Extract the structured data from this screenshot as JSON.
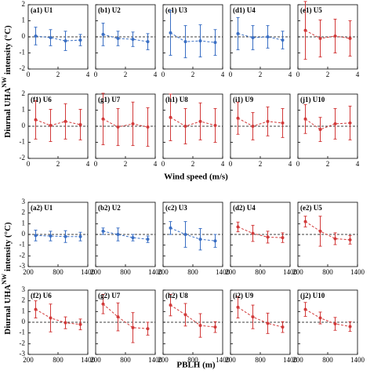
{
  "axis_labels": [
    {
      "xlabel": "Wind speed (m/s)",
      "ylabel": [
        "Diurnal UHA",
        "NW",
        "intensity (°C)"
      ]
    },
    {
      "xlabel": "PBLH (m)",
      "ylabel": [
        "Diurnal UHA",
        "NW",
        "intensity (°C)"
      ]
    }
  ],
  "chart_data": [
    {
      "type": "errorbar",
      "title": "(a1) U1",
      "x": [
        0.5,
        1.5,
        2.5,
        3.5
      ],
      "xlim": [
        0,
        4
      ],
      "xticks": [
        0,
        2,
        4
      ],
      "ylim": [
        -2,
        2
      ],
      "yticks": [
        -2,
        -1,
        0,
        1,
        2
      ],
      "hline": 0,
      "series": [
        {
          "color": "#3a6fc4",
          "values": [
            0.05,
            -0.05,
            -0.25,
            -0.2
          ],
          "errors": [
            0.55,
            0.5,
            0.6,
            0.35
          ]
        }
      ]
    },
    {
      "type": "errorbar",
      "title": "(b1) U2",
      "x": [
        0.5,
        1.5,
        2.5,
        3.5
      ],
      "xlim": [
        0,
        4
      ],
      "xticks": [
        0,
        2,
        4
      ],
      "ylim": [
        -2,
        2
      ],
      "yticks": [
        -2,
        -1,
        0,
        1,
        2
      ],
      "hline": 0,
      "series": [
        {
          "color": "#3a6fc4",
          "values": [
            0.15,
            -0.1,
            -0.15,
            -0.3
          ],
          "errors": [
            0.7,
            0.45,
            0.45,
            0.5
          ]
        }
      ]
    },
    {
      "type": "errorbar",
      "title": "(c1) U3",
      "x": [
        0.5,
        1.5,
        2.5,
        3.5
      ],
      "xlim": [
        0,
        4
      ],
      "xticks": [
        0,
        2,
        4
      ],
      "ylim": [
        -2,
        2
      ],
      "yticks": [
        -2,
        -1,
        0,
        1,
        2
      ],
      "hline": 0,
      "series": [
        {
          "color": "#3a6fc4",
          "values": [
            0.25,
            -0.3,
            -0.25,
            -0.35
          ],
          "errors": [
            1.4,
            1.0,
            1.0,
            0.8
          ]
        }
      ]
    },
    {
      "type": "errorbar",
      "title": "(d1) U4",
      "x": [
        0.5,
        1.5,
        2.5,
        3.5
      ],
      "xlim": [
        0,
        4
      ],
      "xticks": [
        0,
        2,
        4
      ],
      "ylim": [
        -2,
        2
      ],
      "yticks": [
        -2,
        -1,
        0,
        1,
        2
      ],
      "hline": 0,
      "series": [
        {
          "color": "#3a6fc4",
          "values": [
            0.2,
            -0.05,
            0.0,
            -0.2
          ],
          "errors": [
            1.0,
            0.75,
            0.7,
            0.55
          ]
        }
      ]
    },
    {
      "type": "errorbar",
      "title": "(e1) U5",
      "x": [
        0.5,
        1.5,
        2.5,
        3.5
      ],
      "xlim": [
        0,
        4
      ],
      "xticks": [
        0,
        2,
        4
      ],
      "ylim": [
        -2,
        2
      ],
      "yticks": [
        -2,
        -1,
        0,
        1,
        2
      ],
      "hline": 0,
      "series": [
        {
          "color": "#d23a3a",
          "values": [
            0.4,
            -0.1,
            0.05,
            -0.1
          ],
          "errors": [
            1.8,
            1.15,
            1.05,
            1.1
          ]
        }
      ]
    },
    {
      "type": "errorbar",
      "title": "(f1) U6",
      "x": [
        0.5,
        1.5,
        2.5,
        3.5
      ],
      "xlim": [
        0,
        4
      ],
      "xticks": [
        0,
        2,
        4
      ],
      "ylim": [
        -2,
        2
      ],
      "yticks": [
        -2,
        -1,
        0,
        1,
        2
      ],
      "hline": 0,
      "series": [
        {
          "color": "#d23a3a",
          "values": [
            0.4,
            0.05,
            0.3,
            0.1
          ],
          "errors": [
            1.2,
            1.0,
            1.1,
            0.95
          ]
        }
      ]
    },
    {
      "type": "errorbar",
      "title": "(g1) U7",
      "x": [
        0.5,
        1.5,
        2.5,
        3.5
      ],
      "xlim": [
        0,
        4
      ],
      "xticks": [
        0,
        2,
        4
      ],
      "ylim": [
        -2,
        2
      ],
      "yticks": [
        -2,
        -1,
        0,
        1,
        2
      ],
      "hline": 0,
      "series": [
        {
          "color": "#d23a3a",
          "values": [
            0.45,
            -0.05,
            0.15,
            -0.05
          ],
          "errors": [
            1.6,
            1.15,
            1.35,
            1.2
          ]
        }
      ]
    },
    {
      "type": "errorbar",
      "title": "(h1) U8",
      "x": [
        0.5,
        1.5,
        2.5,
        3.5
      ],
      "xlim": [
        0,
        4
      ],
      "xticks": [
        0,
        2,
        4
      ],
      "ylim": [
        -2,
        2
      ],
      "yticks": [
        -2,
        -1,
        0,
        1,
        2
      ],
      "hline": 0,
      "series": [
        {
          "color": "#d23a3a",
          "values": [
            0.55,
            0.0,
            0.3,
            0.05
          ],
          "errors": [
            1.45,
            1.1,
            1.15,
            1.05
          ]
        }
      ]
    },
    {
      "type": "errorbar",
      "title": "(i1) U9",
      "x": [
        0.5,
        1.5,
        2.5,
        3.5
      ],
      "xlim": [
        0,
        4
      ],
      "xticks": [
        0,
        2,
        4
      ],
      "ylim": [
        -2,
        2
      ],
      "yticks": [
        -2,
        -1,
        0,
        1,
        2
      ],
      "hline": 0,
      "series": [
        {
          "color": "#d23a3a",
          "values": [
            0.5,
            0.0,
            0.3,
            0.2
          ],
          "errors": [
            1.0,
            0.85,
            0.9,
            0.9
          ]
        }
      ]
    },
    {
      "type": "errorbar",
      "title": "(j1) U10",
      "x": [
        0.5,
        1.5,
        2.5,
        3.5
      ],
      "xlim": [
        0,
        4
      ],
      "xticks": [
        0,
        2,
        4
      ],
      "ylim": [
        -2,
        2
      ],
      "yticks": [
        -2,
        -1,
        0,
        1,
        2
      ],
      "hline": 0,
      "series": [
        {
          "color": "#d23a3a",
          "values": [
            0.45,
            -0.2,
            0.15,
            0.2
          ],
          "errors": [
            0.9,
            0.75,
            0.95,
            1.05
          ]
        }
      ]
    },
    {
      "type": "errorbar",
      "title": "(a2) U1",
      "x": [
        350,
        650,
        950,
        1250
      ],
      "xlim": [
        200,
        1400
      ],
      "xticks": [
        200,
        800,
        1400
      ],
      "ylim": [
        -3,
        3
      ],
      "yticks": [
        -3,
        -2,
        -1,
        0,
        1,
        2,
        3
      ],
      "hline": 0,
      "series": [
        {
          "color": "#3a6fc4",
          "values": [
            -0.1,
            -0.15,
            -0.2,
            -0.2
          ],
          "errors": [
            0.5,
            0.45,
            0.55,
            0.4
          ]
        }
      ]
    },
    {
      "type": "errorbar",
      "title": "(b2) U2",
      "x": [
        350,
        650,
        950,
        1250
      ],
      "xlim": [
        200,
        1400
      ],
      "xticks": [
        200,
        800,
        1400
      ],
      "ylim": [
        -3,
        3
      ],
      "yticks": [
        -3,
        -2,
        -1,
        0,
        1,
        2,
        3
      ],
      "hline": 0,
      "series": [
        {
          "color": "#3a6fc4",
          "values": [
            0.3,
            0.0,
            -0.3,
            -0.45
          ],
          "errors": [
            0.3,
            0.6,
            0.3,
            0.3
          ]
        }
      ]
    },
    {
      "type": "errorbar",
      "title": "(c2) U3",
      "x": [
        350,
        650,
        950,
        1250
      ],
      "xlim": [
        200,
        1400
      ],
      "xticks": [
        200,
        800,
        1400
      ],
      "ylim": [
        -3,
        3
      ],
      "yticks": [
        -3,
        -2,
        -1,
        0,
        1,
        2,
        3
      ],
      "hline": 0,
      "series": [
        {
          "color": "#3a6fc4",
          "values": [
            0.6,
            0.0,
            -0.45,
            -0.6
          ],
          "errors": [
            0.6,
            1.2,
            1.0,
            0.6
          ]
        }
      ]
    },
    {
      "type": "errorbar",
      "title": "(d2) U4",
      "x": [
        350,
        650,
        950,
        1250
      ],
      "xlim": [
        200,
        1400
      ],
      "xticks": [
        200,
        800,
        1400
      ],
      "ylim": [
        -3,
        3
      ],
      "yticks": [
        -3,
        -2,
        -1,
        0,
        1,
        2,
        3
      ],
      "hline": 0,
      "series": [
        {
          "color": "#d23a3a",
          "values": [
            0.7,
            0.1,
            -0.25,
            -0.3
          ],
          "errors": [
            0.45,
            0.75,
            0.55,
            0.45
          ]
        }
      ]
    },
    {
      "type": "errorbar",
      "title": "(e2) U5",
      "x": [
        350,
        650,
        950,
        1250
      ],
      "xlim": [
        200,
        1400
      ],
      "xticks": [
        200,
        800,
        1400
      ],
      "ylim": [
        -3,
        3
      ],
      "yticks": [
        -3,
        -2,
        -1,
        0,
        1,
        2,
        3
      ],
      "hline": 0,
      "series": [
        {
          "color": "#d23a3a",
          "values": [
            1.2,
            0.3,
            -0.4,
            -0.5
          ],
          "errors": [
            0.5,
            1.4,
            0.55,
            0.4
          ]
        }
      ]
    },
    {
      "type": "errorbar",
      "title": "(f2) U6",
      "x": [
        350,
        650,
        950,
        1250
      ],
      "xlim": [
        200,
        1400
      ],
      "xticks": [
        200,
        800,
        1400
      ],
      "ylim": [
        -3,
        3
      ],
      "yticks": [
        -3,
        -2,
        -1,
        0,
        1,
        2,
        3
      ],
      "hline": 0,
      "series": [
        {
          "color": "#d23a3a",
          "values": [
            1.2,
            0.4,
            -0.05,
            -0.2
          ],
          "errors": [
            0.8,
            1.3,
            0.55,
            0.5
          ]
        }
      ]
    },
    {
      "type": "errorbar",
      "title": "(g2) U7",
      "x": [
        350,
        650,
        950,
        1250
      ],
      "xlim": [
        200,
        1400
      ],
      "xticks": [
        200,
        800,
        1400
      ],
      "ylim": [
        -3,
        3
      ],
      "yticks": [
        -3,
        -2,
        -1,
        0,
        1,
        2,
        3
      ],
      "hline": 0,
      "series": [
        {
          "color": "#d23a3a",
          "values": [
            1.7,
            0.5,
            -0.5,
            -0.6
          ],
          "errors": [
            0.9,
            1.3,
            1.4,
            0.6
          ]
        }
      ]
    },
    {
      "type": "errorbar",
      "title": "(h2) U8",
      "x": [
        350,
        650,
        950,
        1250
      ],
      "xlim": [
        200,
        1400
      ],
      "xticks": [
        200,
        800,
        1400
      ],
      "ylim": [
        -3,
        3
      ],
      "yticks": [
        -3,
        -2,
        -1,
        0,
        1,
        2,
        3
      ],
      "hline": 0,
      "series": [
        {
          "color": "#d23a3a",
          "values": [
            1.6,
            0.7,
            -0.3,
            -0.45
          ],
          "errors": [
            1.0,
            1.05,
            1.1,
            0.5
          ]
        }
      ]
    },
    {
      "type": "errorbar",
      "title": "(i2) U9",
      "x": [
        350,
        650,
        950,
        1250
      ],
      "xlim": [
        200,
        1400
      ],
      "xticks": [
        200,
        800,
        1400
      ],
      "ylim": [
        -3,
        3
      ],
      "yticks": [
        -3,
        -2,
        -1,
        0,
        1,
        2,
        3
      ],
      "hline": 0,
      "series": [
        {
          "color": "#d23a3a",
          "values": [
            1.4,
            0.5,
            -0.1,
            -0.45
          ],
          "errors": [
            1.0,
            1.1,
            0.95,
            0.5
          ]
        }
      ]
    },
    {
      "type": "errorbar",
      "title": "(j2) U10",
      "x": [
        350,
        650,
        950,
        1250
      ],
      "xlim": [
        200,
        1400
      ],
      "xticks": [
        200,
        800,
        1400
      ],
      "ylim": [
        -3,
        3
      ],
      "yticks": [
        -3,
        -2,
        -1,
        0,
        1,
        2,
        3
      ],
      "hline": 0,
      "series": [
        {
          "color": "#d23a3a",
          "values": [
            1.2,
            0.4,
            -0.15,
            -0.4
          ],
          "errors": [
            0.65,
            0.55,
            0.6,
            0.45
          ]
        }
      ]
    }
  ]
}
